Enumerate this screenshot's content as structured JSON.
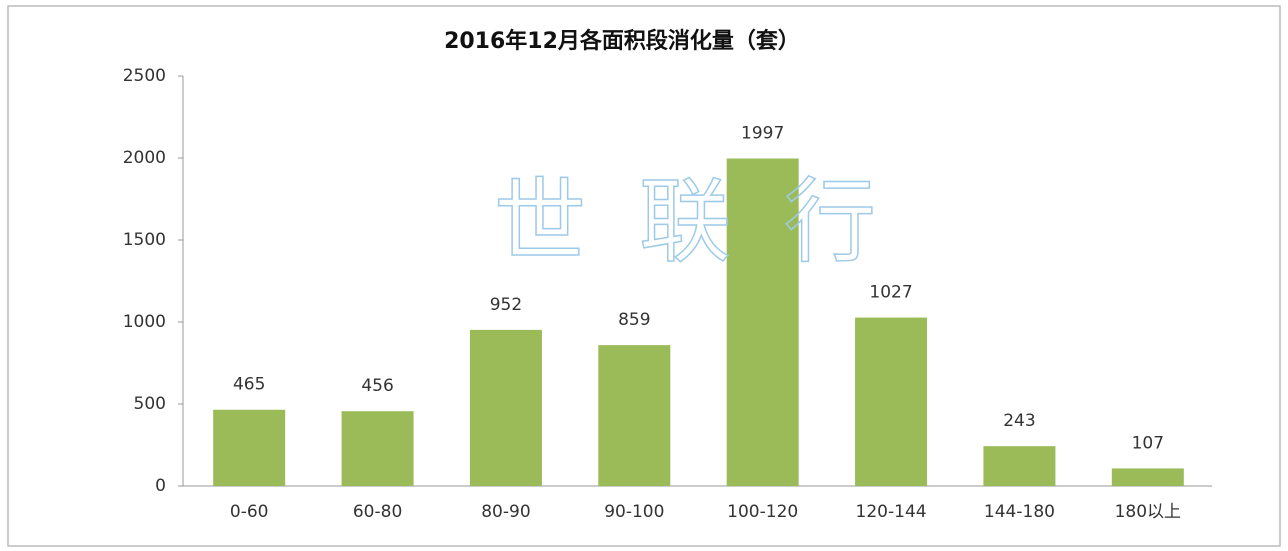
{
  "chart_data": {
    "type": "bar",
    "title": "2016年12月各面积段消化量（套）",
    "categories": [
      "0-60",
      "60-80",
      "80-90",
      "90-100",
      "100-120",
      "120-144",
      "144-180",
      "180以上"
    ],
    "values": [
      465,
      456,
      952,
      859,
      1997,
      1027,
      243,
      107
    ],
    "color": "#9bbb59",
    "ylim": [
      0,
      2500
    ],
    "yticks": [
      0,
      500,
      1000,
      1500,
      2000,
      2500
    ],
    "grid": false,
    "watermark": [
      "世",
      "联",
      "行"
    ]
  }
}
